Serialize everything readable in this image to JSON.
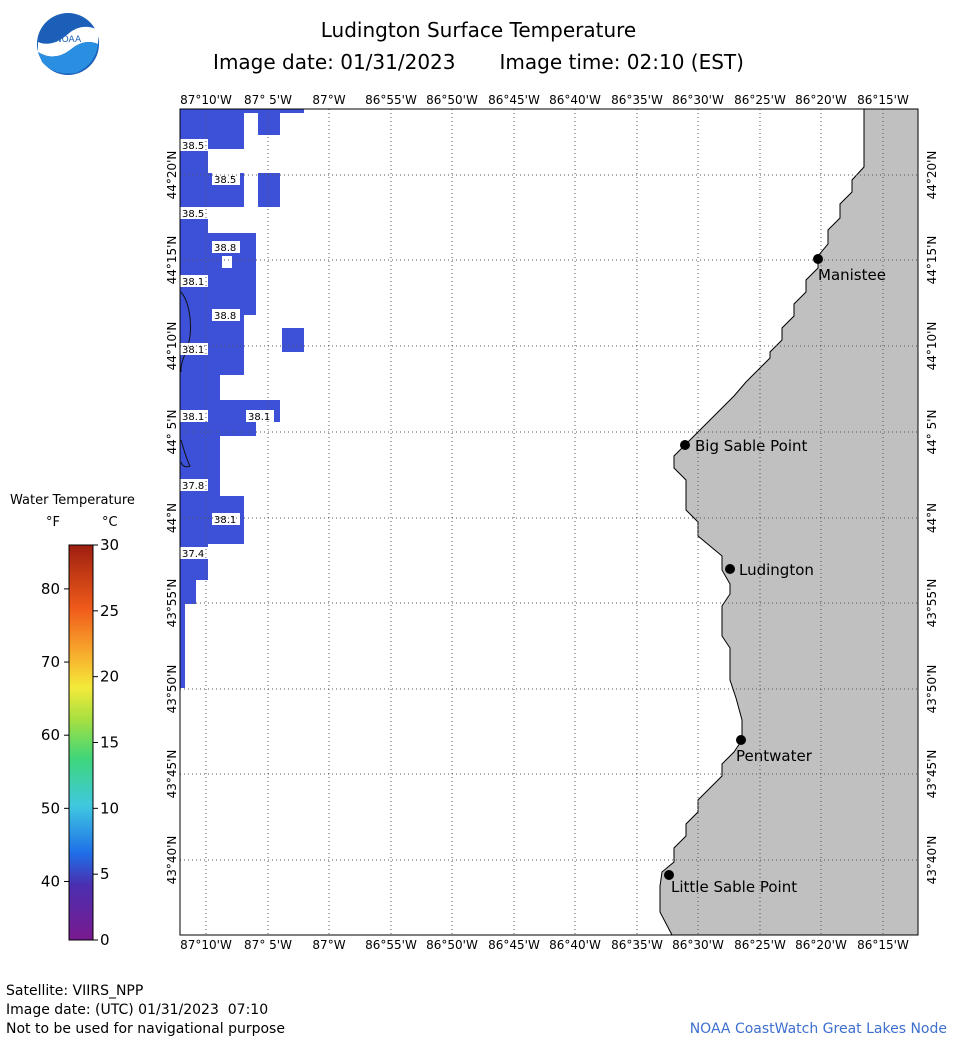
{
  "header": {
    "title": "Ludington Surface Temperature",
    "image_date_label": "Image date: 01/31/2023",
    "image_time_label": "Image time: 02:10 (EST)",
    "logo_text": "NOAA"
  },
  "map": {
    "lon_labels": [
      "87°10'W",
      "87° 5'W",
      "87°W",
      "86°55'W",
      "86°50'W",
      "86°45'W",
      "86°40'W",
      "86°35'W",
      "86°30'W",
      "86°25'W",
      "86°20'W",
      "86°15'W"
    ],
    "lat_labels": [
      "44°20'N",
      "44°15'N",
      "44°10'N",
      "44° 5'N",
      "44°N",
      "43°55'N",
      "43°50'N",
      "43°45'N",
      "43°40'N"
    ],
    "cities": [
      {
        "name": "Manistee"
      },
      {
        "name": "Big Sable Point"
      },
      {
        "name": "Ludington"
      },
      {
        "name": "Pentwater"
      },
      {
        "name": "Little Sable Point"
      }
    ],
    "temp_labels": [
      "38.5",
      "38.5",
      "38.5",
      "38.8",
      "38.1",
      "38.8",
      "38.1",
      "38.1",
      "38.1",
      "37.8",
      "38.1",
      "37.4"
    ],
    "colors": {
      "water": "#3c50d8",
      "land": "#c0c0c0",
      "grid": "#555555"
    }
  },
  "legend": {
    "title": "Water Temperature",
    "f_unit": "°F",
    "c_unit": "°C",
    "f_ticks": [
      "80",
      "70",
      "60",
      "50",
      "40"
    ],
    "c_ticks": [
      "30",
      "25",
      "20",
      "15",
      "10",
      "5",
      "0"
    ],
    "f_values": [
      80,
      70,
      60,
      50,
      40
    ],
    "c_values": [
      30,
      25,
      20,
      15,
      10,
      5,
      0
    ]
  },
  "footer": {
    "satellite": "Satellite: VIIRS_NPP",
    "utc_date": "Image date: (UTC) 01/31/2023  07:10",
    "disclaimer": "Not to be used for navigational purpose",
    "credit": "NOAA CoastWatch Great Lakes Node"
  }
}
